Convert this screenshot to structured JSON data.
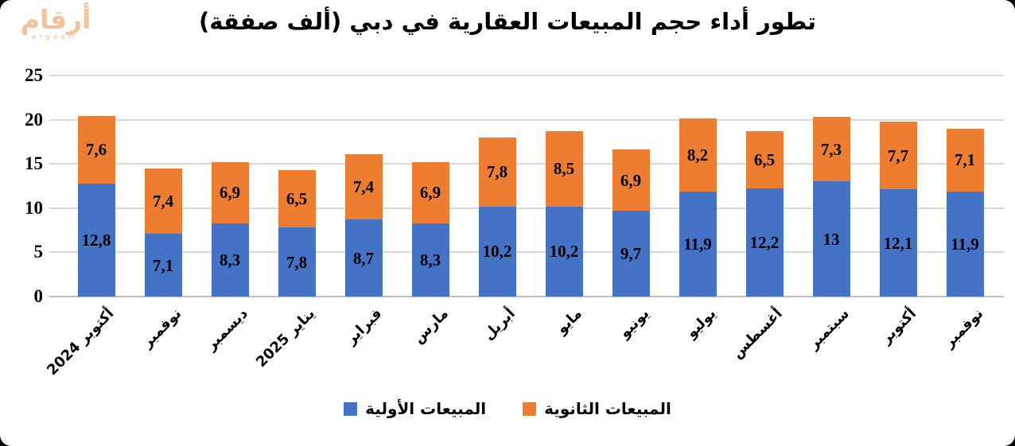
{
  "logo": {
    "arabic": "أرقام",
    "latin": "argaam",
    "color": "#F3C19C"
  },
  "title": "تطور أداء حجم المبيعات العقارية في دبي (ألف صفقة)",
  "chart_data": {
    "type": "bar",
    "stacked": true,
    "title": "تطور أداء حجم المبيعات العقارية في دبي (ألف صفقة)",
    "categories": [
      "أكتوبر 2024",
      "نوفمبر",
      "ديسمبر",
      "يناير 2025",
      "فبراير",
      "مارس",
      "أبريل",
      "مايو",
      "يونيو",
      "يوليو",
      "أغسطس",
      "سبتمبر",
      "أكتوبر",
      "نوفمبر"
    ],
    "series": [
      {
        "name": "المبيعات الأولية",
        "color": "#4472C4",
        "values": [
          12.8,
          7.1,
          8.3,
          7.8,
          8.7,
          8.3,
          10.2,
          10.2,
          9.7,
          11.9,
          12.2,
          13,
          12.1,
          11.9
        ],
        "labels": [
          "12,8",
          "7,1",
          "8,3",
          "7,8",
          "8,7",
          "8,3",
          "10,2",
          "10,2",
          "9,7",
          "11,9",
          "12,2",
          "13",
          "12,1",
          "11,9"
        ]
      },
      {
        "name": "المبيعات الثانوية",
        "color": "#ED7D31",
        "values": [
          7.6,
          7.4,
          6.9,
          6.5,
          7.4,
          6.9,
          7.8,
          8.5,
          6.9,
          8.2,
          6.5,
          7.3,
          7.7,
          7.1
        ],
        "labels": [
          "7,6",
          "7,4",
          "6,9",
          "6,5",
          "7,4",
          "6,9",
          "7,8",
          "8,5",
          "6,9",
          "8,2",
          "6,5",
          "7,3",
          "7,7",
          "7,1"
        ]
      }
    ],
    "y_ticks": [
      0,
      5,
      10,
      15,
      20,
      25
    ],
    "ylim": [
      0,
      25
    ],
    "xlabel": "",
    "ylabel": "",
    "grid": true,
    "legend_position": "bottom"
  }
}
